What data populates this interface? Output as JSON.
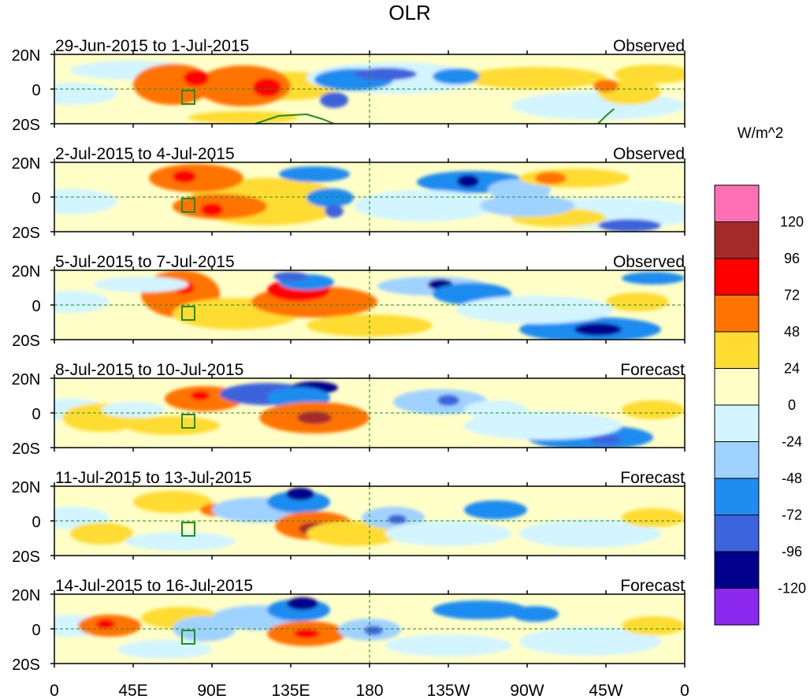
{
  "title": "OLR",
  "units_label": "W/m^2",
  "panels": [
    {
      "period": "29-Jun-2015 to 1-Jul-2015",
      "kind": "Observed"
    },
    {
      "period": "2-Jul-2015 to 4-Jul-2015",
      "kind": "Observed"
    },
    {
      "period": "5-Jul-2015 to 7-Jul-2015",
      "kind": "Observed"
    },
    {
      "period": "8-Jul-2015 to 10-Jul-2015",
      "kind": "Forecast"
    },
    {
      "period": "11-Jul-2015 to 13-Jul-2015",
      "kind": "Forecast"
    },
    {
      "period": "14-Jul-2015 to 16-Jul-2015",
      "kind": "Forecast"
    }
  ],
  "lat_labels": [
    "20N",
    "0",
    "20S"
  ],
  "lon_labels": [
    "0",
    "45E",
    "90E",
    "135E",
    "180",
    "135W",
    "90W",
    "45W",
    "0"
  ],
  "colorbar": {
    "colors_top_to_bottom": [
      "#ff70b4",
      "#a52a2a",
      "#ff0000",
      "#ff7300",
      "#ffdc32",
      "#ffffc8",
      "#d2f5ff",
      "#a0d2ff",
      "#1e8cf0",
      "#3c64dc",
      "#00008c",
      "#8c28f0"
    ],
    "labels_top_to_bottom": [
      "120",
      "96",
      "72",
      "48",
      "24",
      "0",
      "-24",
      "-48",
      "-72",
      "-96",
      "-120"
    ]
  },
  "colors": {
    "coast": "#228b22",
    "guide": "#228b22"
  }
}
